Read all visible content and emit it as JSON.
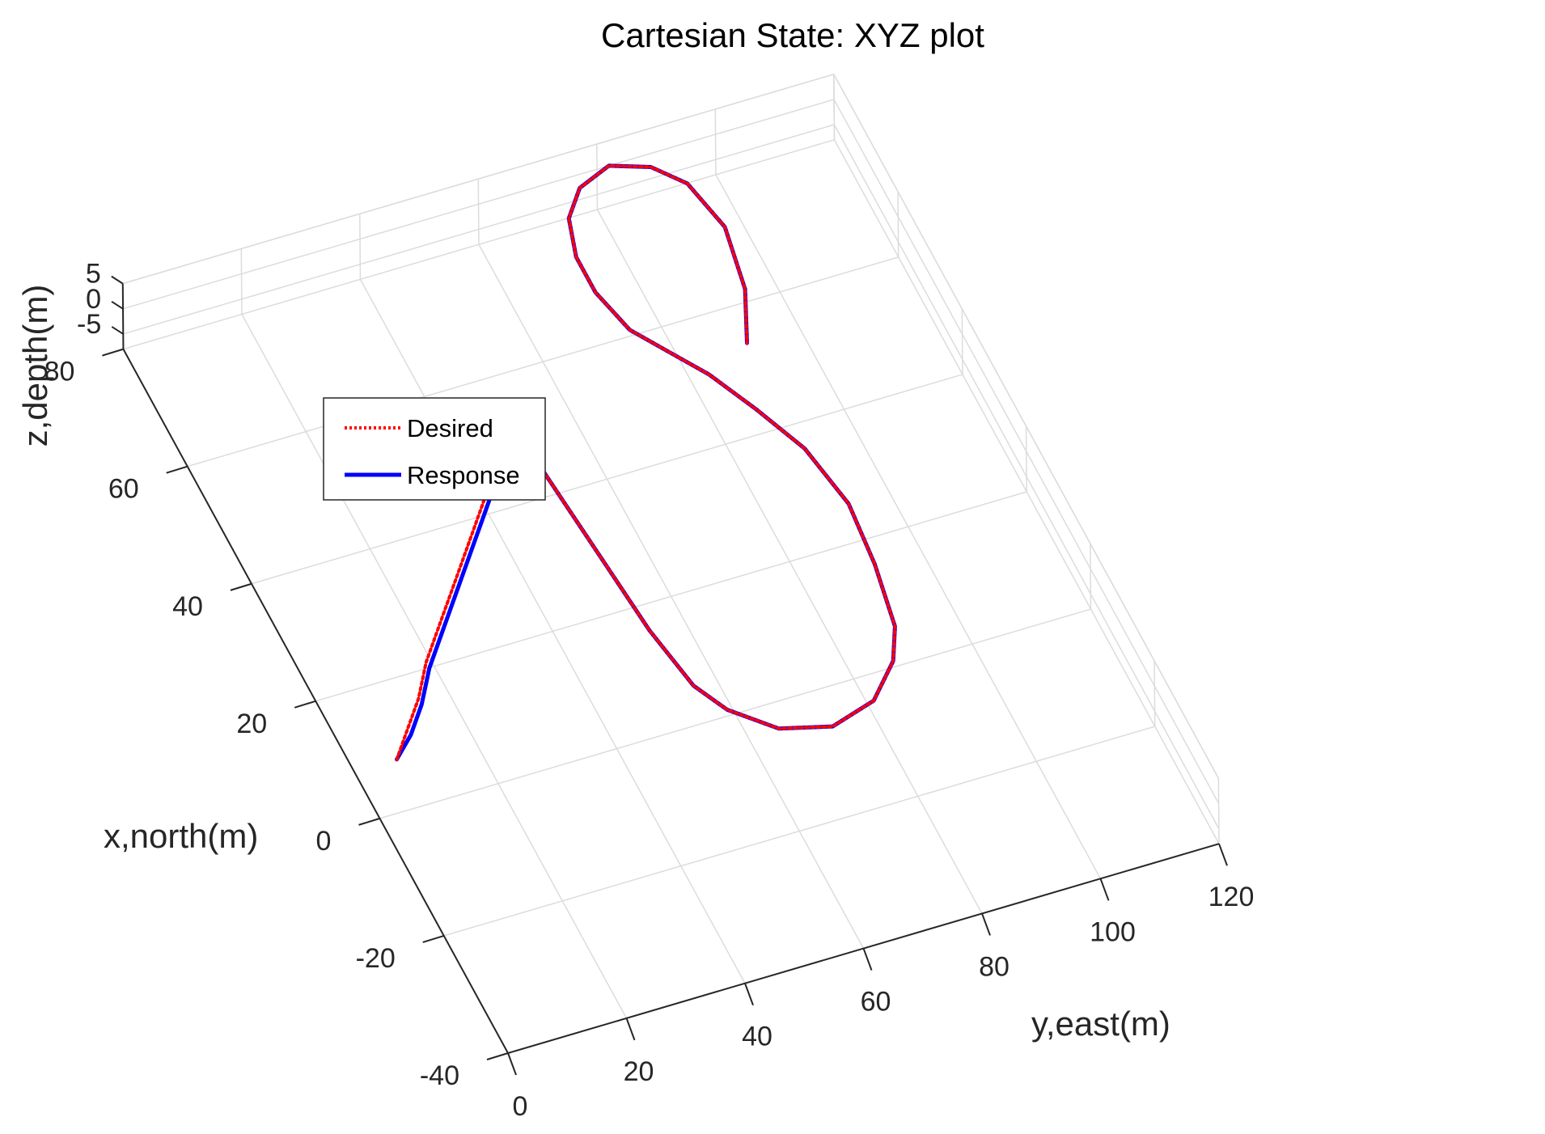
{
  "chart_data": {
    "type": "line",
    "title": "Cartesian State: XYZ plot",
    "xlabel": "x,north(m)",
    "ylabel": "y,east(m)",
    "zlabel": "z,depth(m)",
    "xlim": [
      -40,
      80
    ],
    "ylim": [
      0,
      120
    ],
    "zlim": [
      -8,
      5
    ],
    "x_ticks": [
      "-40",
      "-20",
      "0",
      "20",
      "40",
      "60",
      "80"
    ],
    "y_ticks": [
      "0",
      "20",
      "40",
      "60",
      "80",
      "100",
      "120"
    ],
    "z_ticks": [
      "-5",
      "0",
      "5"
    ],
    "grid": true,
    "legend_position": "top-left",
    "colors": {
      "desired": "#ff0000",
      "response": "#0000ff",
      "axis": "#262626",
      "grid": "#dcdcdc"
    },
    "series": [
      {
        "name": "Desired",
        "style": "dotted",
        "description_points_x_north": [
          2,
          6,
          10,
          15,
          20,
          25,
          30,
          35,
          40,
          43,
          45,
          40,
          30,
          20,
          10,
          0,
          -5,
          -10,
          -12,
          -10,
          -5,
          0,
          10,
          20,
          30,
          38,
          45,
          50,
          55,
          62,
          68,
          74,
          78,
          80,
          78,
          74,
          66,
          56,
          48
        ],
        "y_east": [
          4,
          8,
          12,
          16,
          21,
          26,
          31,
          36,
          41,
          44,
          46,
          48,
          49,
          50,
          51,
          53,
          56,
          62,
          70,
          78,
          84,
          87,
          89,
          90,
          88,
          84,
          80,
          76,
          72,
          70,
          70,
          72,
          76,
          82,
          88,
          92,
          94,
          92,
          88
        ]
      },
      {
        "name": "Response",
        "style": "solid",
        "description_points_x_north": [
          2,
          5,
          9,
          14,
          19,
          24,
          29,
          34,
          39,
          42,
          45,
          40,
          30,
          20,
          10,
          0,
          -5,
          -10,
          -12,
          -10,
          -5,
          0,
          10,
          20,
          30,
          38,
          45,
          50,
          55,
          62,
          68,
          74,
          78,
          80,
          78,
          74,
          66,
          56,
          48
        ],
        "y_east": [
          4,
          8,
          12,
          16,
          21,
          26,
          31,
          36,
          41,
          44,
          46,
          48,
          49,
          50,
          51,
          53,
          56,
          62,
          70,
          78,
          84,
          87,
          89,
          90,
          88,
          84,
          80,
          76,
          72,
          70,
          70,
          72,
          76,
          82,
          88,
          92,
          94,
          92,
          88
        ]
      }
    ]
  }
}
